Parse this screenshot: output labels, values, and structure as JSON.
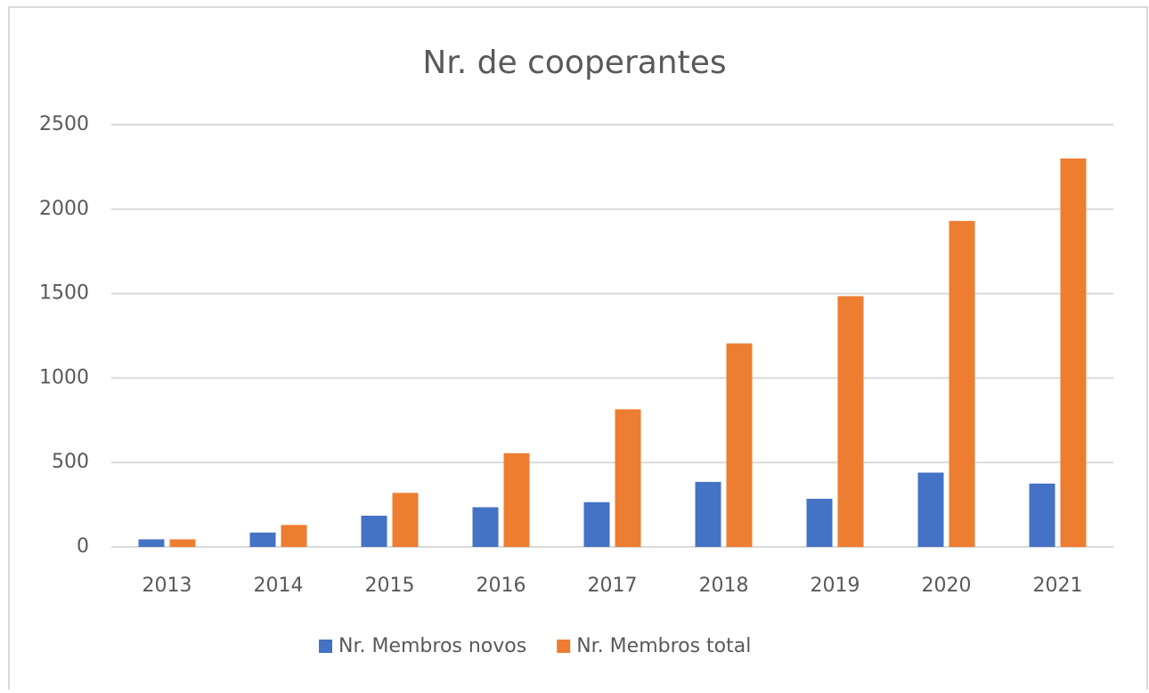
{
  "chart_data": {
    "type": "bar",
    "title": "Nr. de cooperantes",
    "categories": [
      "2013",
      "2014",
      "2015",
      "2016",
      "2017",
      "2018",
      "2019",
      "2020",
      "2021"
    ],
    "series": [
      {
        "name": "Nr. Membros novos",
        "color": "#4472c4",
        "values": [
          45,
          85,
          185,
          235,
          265,
          385,
          285,
          440,
          375
        ]
      },
      {
        "name": "Nr. Membros total",
        "color": "#ed7d31",
        "values": [
          45,
          130,
          320,
          555,
          815,
          1205,
          1485,
          1930,
          2300
        ]
      }
    ],
    "ylim": [
      0,
      2500
    ],
    "yticks": [
      0,
      500,
      1000,
      1500,
      2000,
      2500
    ],
    "grid": true,
    "legend": "bottom"
  }
}
